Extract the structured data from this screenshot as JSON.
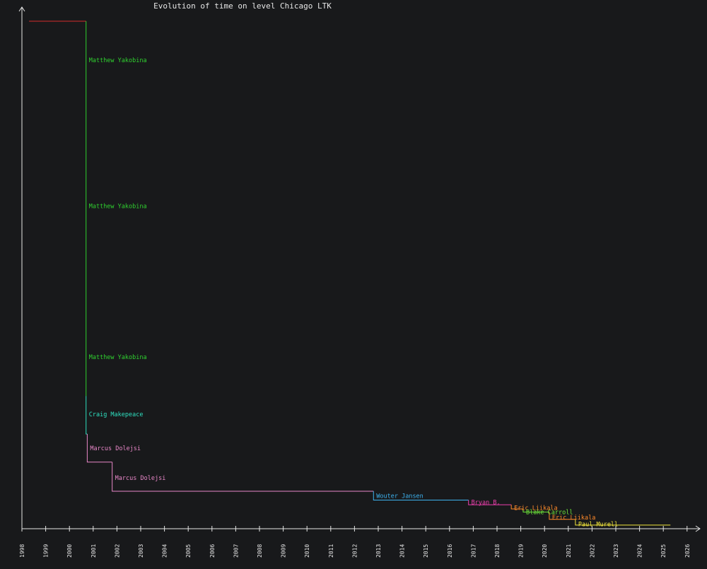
{
  "chart_data": {
    "type": "line",
    "title": "Evolution of time on level Chicago LTK",
    "xlabel": "",
    "ylabel": "",
    "x_tick_labels": [
      "1998",
      "1999",
      "2000",
      "2001",
      "2002",
      "2003",
      "2004",
      "2005",
      "2006",
      "2007",
      "2008",
      "2009",
      "2010",
      "2011",
      "2012",
      "2013",
      "2014",
      "2015",
      "2016",
      "2017",
      "2018",
      "2019",
      "2020",
      "2021",
      "2022",
      "2023",
      "2024",
      "2025",
      "2026"
    ],
    "xlim": [
      1998.0,
      2026.5
    ],
    "ylim": [
      0,
      100
    ],
    "grid": false,
    "legend": "none",
    "y_unit_note": "relative record time (no y tick labels shown)",
    "steps": [
      {
        "x_start": 1998.3,
        "x_end": 2000.7,
        "y": 97.5,
        "color": "#d42b2b",
        "name": ""
      },
      {
        "x_start": 2000.7,
        "x_end": 2000.7,
        "y": 25.5,
        "color": "#2fd12f",
        "name": "Matthew Yakobina",
        "label_ys": [
          90,
          62,
          33
        ]
      },
      {
        "x_start": 2000.7,
        "x_end": 2000.75,
        "y": 18.2,
        "color": "#2ee0c0",
        "name": "Craig Makepeace",
        "label_ys": [
          22
        ]
      },
      {
        "x_start": 2000.75,
        "x_end": 2001.8,
        "y": 12.8,
        "color": "#e887c8",
        "name": "Marcus Dolejsi",
        "label_ys": [
          15.5
        ]
      },
      {
        "x_start": 2001.8,
        "x_end": 2012.8,
        "y": 7.2,
        "color": "#e887c8",
        "name": "Marcus Dolejsi",
        "label_ys": [
          9.8
        ]
      },
      {
        "x_start": 2012.8,
        "x_end": 2016.8,
        "y": 5.5,
        "color": "#3db3f0",
        "name": "Wouter Jansen",
        "label_ys": [
          6.3
        ]
      },
      {
        "x_start": 2016.8,
        "x_end": 2018.6,
        "y": 4.6,
        "color": "#ee3fae",
        "name": "Bryan B.",
        "label_ys": [
          5.1
        ]
      },
      {
        "x_start": 2018.6,
        "x_end": 2019.1,
        "y": 3.8,
        "color": "#ff8a2a",
        "name": "Eric Liikala",
        "label_ys": [
          4.0
        ]
      },
      {
        "x_start": 2019.1,
        "x_end": 2020.2,
        "y": 3.2,
        "color": "#6ee83a",
        "name": "Blake Carroll",
        "label_ys": [
          3.2
        ]
      },
      {
        "x_start": 2020.2,
        "x_end": 2021.3,
        "y": 1.8,
        "color": "#ff8a2a",
        "name": "Eric Liikala",
        "label_ys": [
          2.2
        ]
      },
      {
        "x_start": 2021.3,
        "x_end": 2025.3,
        "y": 0.7,
        "color": "#f2e63c",
        "name": "Paul Murell",
        "label_ys": [
          0.9
        ]
      }
    ]
  }
}
